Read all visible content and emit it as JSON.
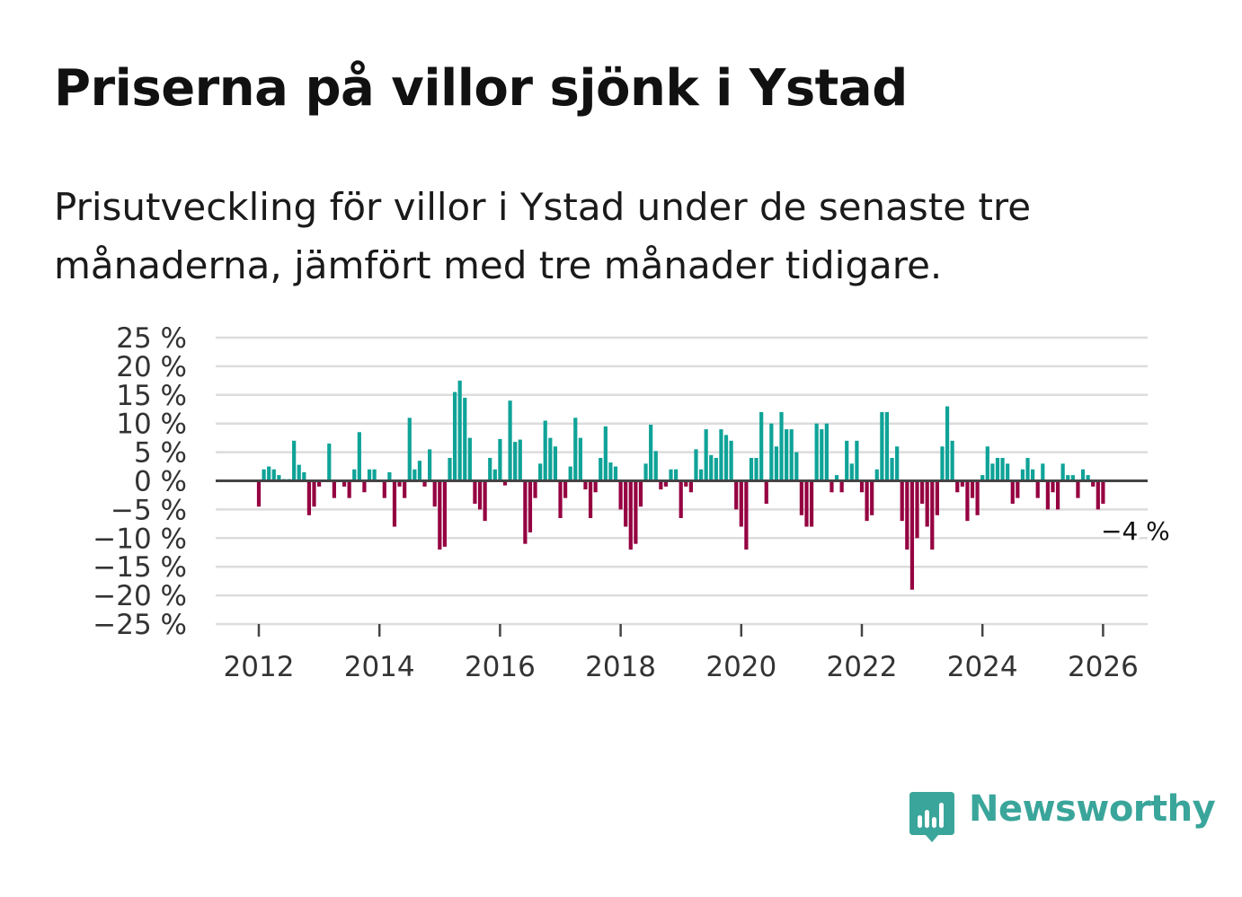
{
  "title": "Priserna på villor sjönk i Ystad",
  "subtitle": "Prisutveckling för villor i Ystad under de senaste tre månaderna, jämfört med tre månader tidigare.",
  "brand": {
    "name": "Newsworthy",
    "color": "#3aa59a"
  },
  "chart_data": {
    "type": "bar",
    "title": "",
    "xlabel": "",
    "ylabel": "",
    "ylim": [
      -25,
      25
    ],
    "xlim": [
      2011.25,
      2026.75
    ],
    "y_ticks": [
      25,
      20,
      15,
      10,
      5,
      0,
      -5,
      -10,
      -15,
      -20,
      -25
    ],
    "y_tick_labels": [
      "25 %",
      "20 %",
      "15 %",
      "10 %",
      "5 %",
      "0 %",
      "−5 %",
      "−10 %",
      "−15 %",
      "−20 %",
      "−25 %"
    ],
    "x_ticks": [
      2012,
      2014,
      2016,
      2018,
      2020,
      2022,
      2024,
      2026
    ],
    "x_tick_labels": [
      "2012",
      "2014",
      "2016",
      "2018",
      "2020",
      "2022",
      "2024",
      "2026"
    ],
    "start": {
      "year": 2012,
      "month": 1
    },
    "positive_color": "#0fa398",
    "negative_color": "#950041",
    "grid": true,
    "last_label": "−4 %",
    "values": [
      -4.5,
      2,
      2.5,
      2,
      1,
      0.3,
      0.3,
      7,
      2.8,
      1.5,
      -6,
      -4.5,
      -1,
      0,
      6.5,
      -3,
      0,
      -1,
      -3,
      2,
      8.5,
      -2,
      2,
      2,
      0,
      -3,
      1.5,
      -8,
      -1,
      -3,
      11,
      2,
      3.5,
      -1,
      5.5,
      -4.5,
      -12,
      -11.5,
      4,
      15.5,
      17.5,
      14.5,
      7.5,
      -4,
      -5,
      -7,
      4,
      2,
      7.3,
      -0.8,
      14,
      6.8,
      7.2,
      -11,
      -9,
      -3,
      3,
      10.5,
      7.5,
      6,
      -6.5,
      -3,
      2.5,
      11,
      7.5,
      -1.5,
      -6.5,
      -2,
      4,
      9.5,
      3.2,
      2.5,
      -5,
      -8,
      -12,
      -11,
      -4.5,
      3,
      9.8,
      5.2,
      -1.5,
      -1,
      2,
      2,
      -6.5,
      -1,
      -2,
      5.5,
      2,
      9,
      4.5,
      4,
      9,
      8,
      7,
      -5,
      -8,
      -12,
      4,
      4,
      12,
      -4,
      10,
      6,
      12,
      9,
      9,
      5,
      -6,
      -8,
      -8,
      10,
      9,
      10,
      -2,
      1,
      -2,
      7,
      3,
      7,
      -2,
      -7,
      -6,
      2,
      12,
      12,
      4,
      6,
      -7,
      -12,
      -19,
      -10,
      -4,
      -8,
      -12,
      -6,
      6,
      13,
      7,
      -2,
      -1,
      -7,
      -3,
      -6,
      1,
      6,
      3,
      4,
      4,
      3,
      -4,
      -3,
      2,
      4,
      2,
      -3,
      3,
      -5,
      -2,
      -5,
      3,
      1,
      1,
      -3,
      2,
      1,
      -1,
      -5,
      -4
    ]
  }
}
